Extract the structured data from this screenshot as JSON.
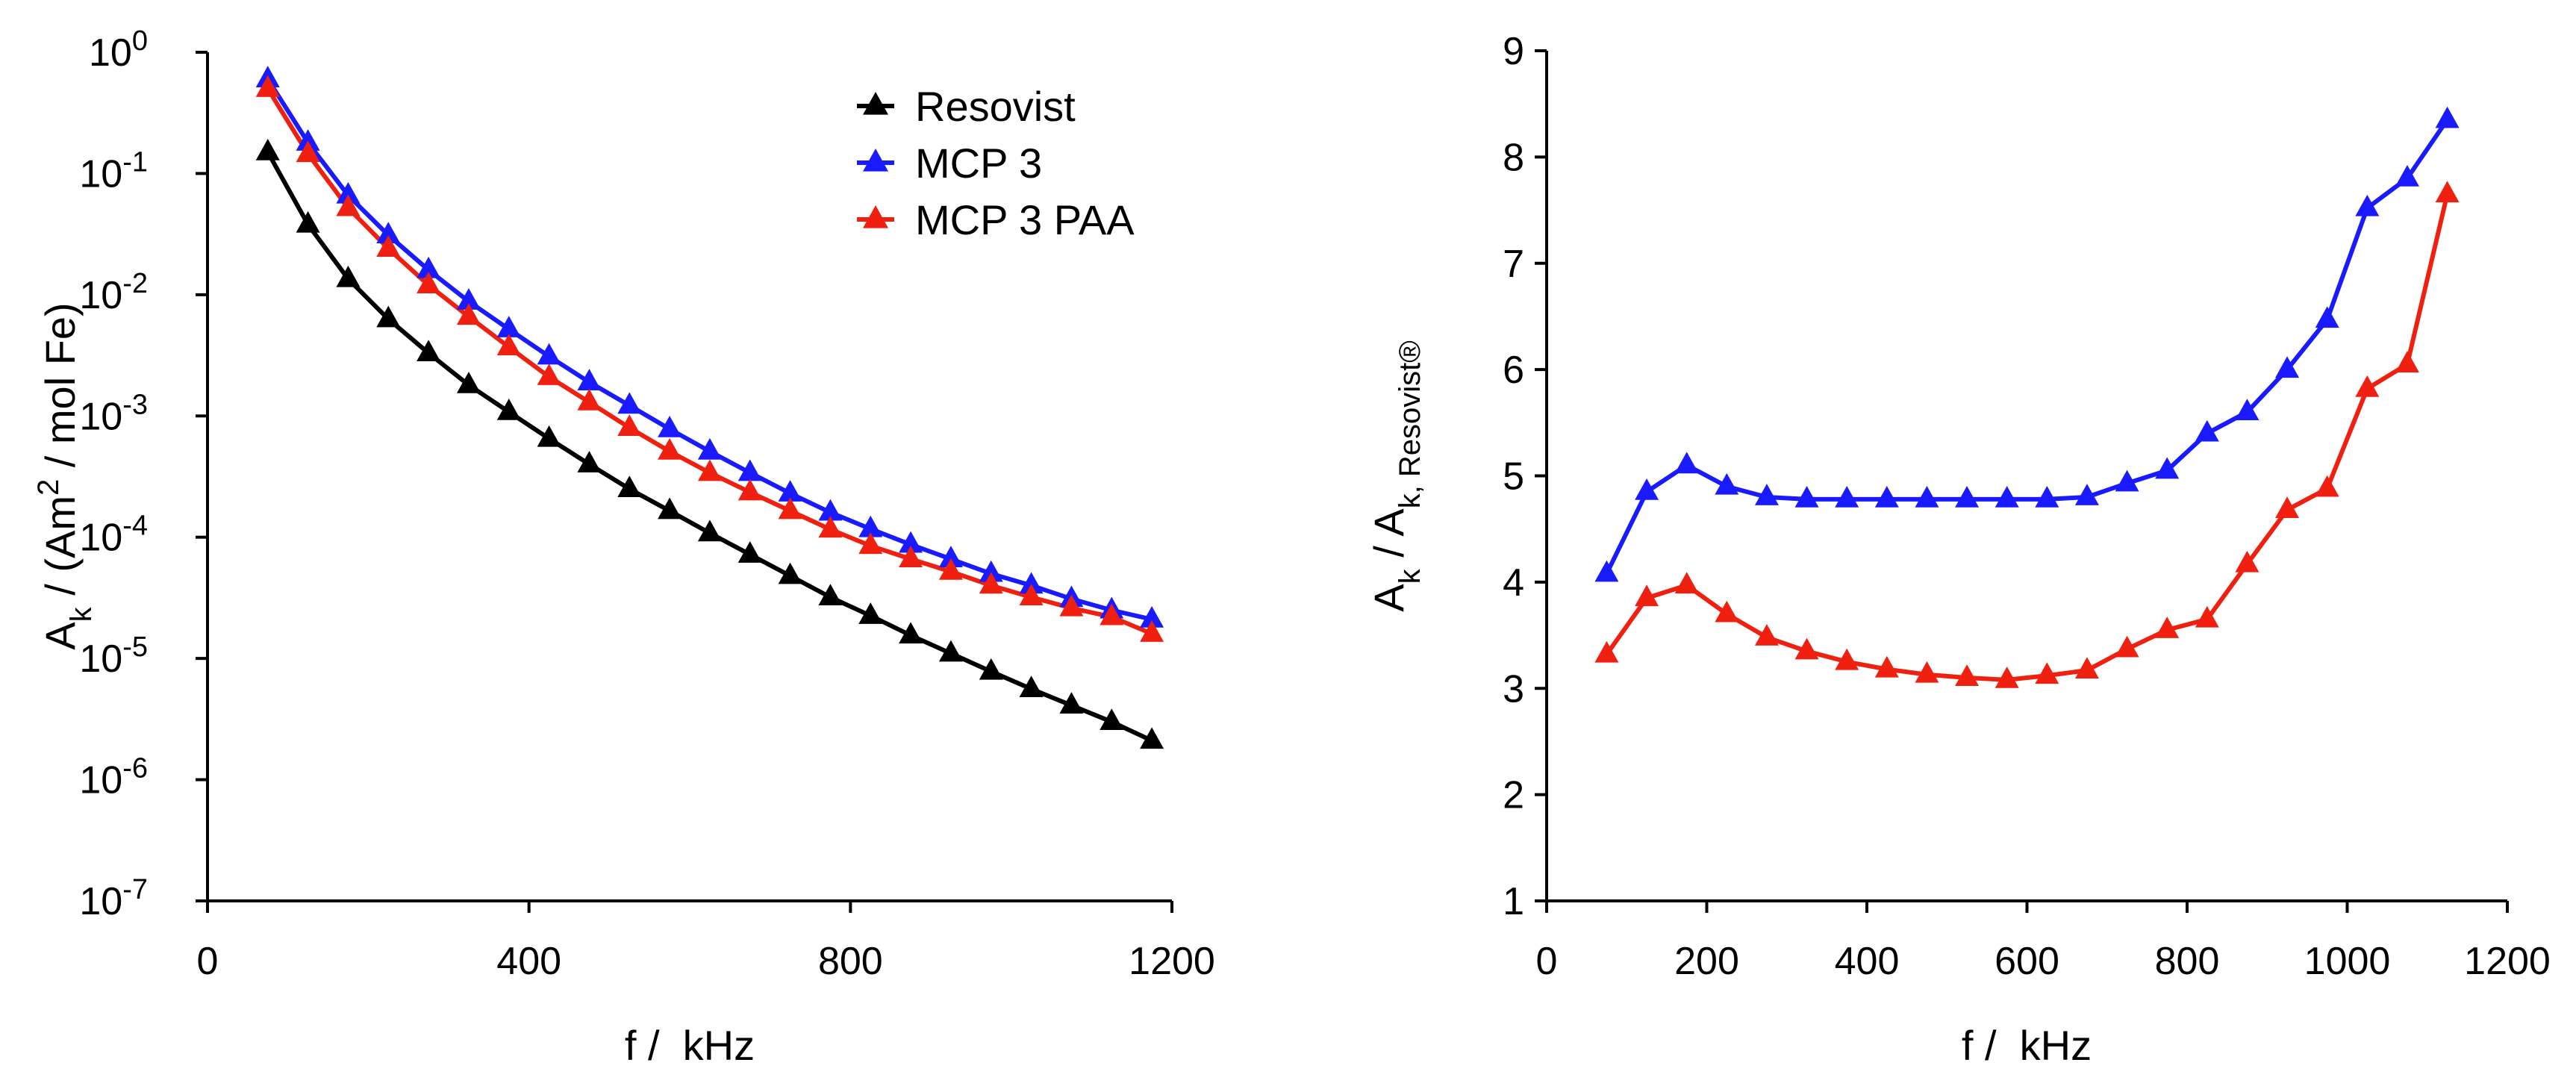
{
  "chart_data": [
    {
      "type": "line",
      "panel": "left",
      "yscale": "log",
      "xlabel": "f /  kHz",
      "ylabel_parts": {
        "main": "A",
        "sub": "k",
        "mid": " / (Am",
        "sup": "2",
        "end": " / mol Fe)"
      },
      "xlim": [
        0,
        1200
      ],
      "xticks": [
        0,
        400,
        800,
        1200
      ],
      "ytick_exponents": [
        0,
        -1,
        -2,
        -3,
        -4,
        -5,
        -6,
        -7
      ],
      "ytick_base": "10",
      "legend_position": "top-right",
      "x": [
        75,
        125,
        175,
        225,
        275,
        325,
        375,
        425,
        475,
        525,
        575,
        625,
        675,
        725,
        775,
        825,
        875,
        925,
        975,
        1025,
        1075,
        1125,
        1175
      ],
      "series": [
        {
          "name": "Resovist",
          "color": "#000000",
          "values": [
            0.15,
            0.038,
            0.0135,
            0.0063,
            0.0033,
            0.0018,
            0.00108,
            0.00065,
            0.0004,
            0.00025,
            0.000165,
            0.000108,
            7.2e-05,
            4.8e-05,
            3.2e-05,
            2.25e-05,
            1.55e-05,
            1.1e-05,
            7.8e-06,
            5.6e-06,
            4.1e-06,
            3e-06,
            2.1e-06
          ]
        },
        {
          "name": "MCP 3",
          "color": "#1a1aff",
          "values": [
            0.6,
            0.18,
            0.066,
            0.031,
            0.016,
            0.0088,
            0.0052,
            0.0031,
            0.0019,
            0.00122,
            0.00078,
            0.00051,
            0.00034,
            0.00023,
            0.00016,
            0.000117,
            8.7e-05,
            6.6e-05,
            5e-05,
            4e-05,
            3.1e-05,
            2.5e-05,
            2.1e-05
          ]
        },
        {
          "name": "MCP 3 PAA",
          "color": "#f02010",
          "values": [
            0.5,
            0.145,
            0.052,
            0.024,
            0.012,
            0.0066,
            0.0037,
            0.0021,
            0.0013,
            0.0008,
            0.00051,
            0.00034,
            0.000235,
            0.000165,
            0.000116,
            8.5e-05,
            6.6e-05,
            5.2e-05,
            4e-05,
            3.2e-05,
            2.6e-05,
            2.2e-05,
            1.6e-05
          ]
        }
      ]
    },
    {
      "type": "line",
      "panel": "right",
      "yscale": "linear",
      "xlabel": "f /  kHz",
      "ylabel_parts": {
        "main": "A",
        "sub": "k",
        "mid": " / A",
        "sub2": "k, Resovist®"
      },
      "xlim": [
        0,
        1200
      ],
      "ylim": [
        1,
        9
      ],
      "xticks": [
        0,
        200,
        400,
        600,
        800,
        1000,
        1200
      ],
      "yticks": [
        1,
        2,
        3,
        4,
        5,
        6,
        7,
        8,
        9
      ],
      "x": [
        75,
        125,
        175,
        225,
        275,
        325,
        375,
        425,
        475,
        525,
        575,
        625,
        675,
        725,
        775,
        825,
        875,
        925,
        975,
        1025,
        1075,
        1125
      ],
      "series": [
        {
          "name": "MCP 3",
          "color": "#1a1aff",
          "values": [
            4.08,
            4.85,
            5.1,
            4.9,
            4.8,
            4.78,
            4.78,
            4.78,
            4.78,
            4.78,
            4.78,
            4.78,
            4.8,
            4.93,
            5.05,
            5.4,
            5.6,
            6.0,
            6.47,
            7.52,
            7.8,
            8.35
          ]
        },
        {
          "name": "MCP 3 PAA",
          "color": "#f02010",
          "values": [
            3.32,
            3.85,
            3.97,
            3.7,
            3.48,
            3.35,
            3.25,
            3.18,
            3.13,
            3.1,
            3.08,
            3.12,
            3.17,
            3.37,
            3.55,
            3.65,
            4.17,
            4.68,
            4.88,
            5.82,
            6.05,
            7.65
          ]
        }
      ]
    }
  ]
}
